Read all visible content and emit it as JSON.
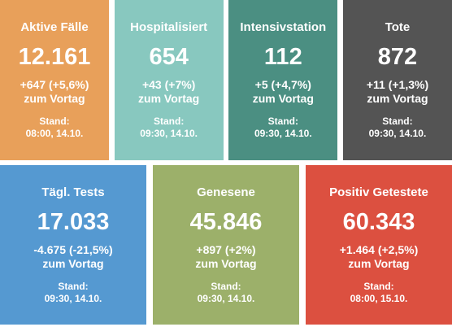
{
  "cards_top": [
    {
      "title": "Aktive Fälle",
      "value": "12.161",
      "change": "+647 (+5,6%)",
      "suffix": "zum Vortag",
      "stand_label": "Stand:",
      "stand_date": "08:00, 14.10.",
      "color": "#e8a05a"
    },
    {
      "title": "Hospitalisiert",
      "value": "654",
      "change": "+43 (+7%)",
      "suffix": "zum Vortag",
      "stand_label": "Stand:",
      "stand_date": "09:30, 14.10.",
      "color": "#88c8bf"
    },
    {
      "title": "Intensivstation",
      "value": "112",
      "change": "+5 (+4,7%)",
      "suffix": "zum Vortag",
      "stand_label": "Stand:",
      "stand_date": "09:30, 14.10.",
      "color": "#4b8f82"
    },
    {
      "title": "Tote",
      "value": "872",
      "change": "+11 (+1,3%)",
      "suffix": "zum Vortag",
      "stand_label": "Stand:",
      "stand_date": "09:30, 14.10.",
      "color": "#545454"
    }
  ],
  "cards_bottom": [
    {
      "title": "Tägl. Tests",
      "value": "17.033",
      "change": "-4.675 (-21,5%)",
      "suffix": "zum Vortag",
      "stand_label": "Stand:",
      "stand_date": "09:30, 14.10.",
      "color": "#5599d1"
    },
    {
      "title": "Genesene",
      "value": "45.846",
      "change": "+897 (+2%)",
      "suffix": "zum Vortag",
      "stand_label": "Stand:",
      "stand_date": "09:30, 14.10.",
      "color": "#9cb06a"
    },
    {
      "title": "Positiv Getestete",
      "value": "60.343",
      "change": "+1.464 (+2,5%)",
      "suffix": "zum Vortag",
      "stand_label": "Stand:",
      "stand_date": "08:00, 15.10.",
      "color": "#dc5040"
    }
  ]
}
